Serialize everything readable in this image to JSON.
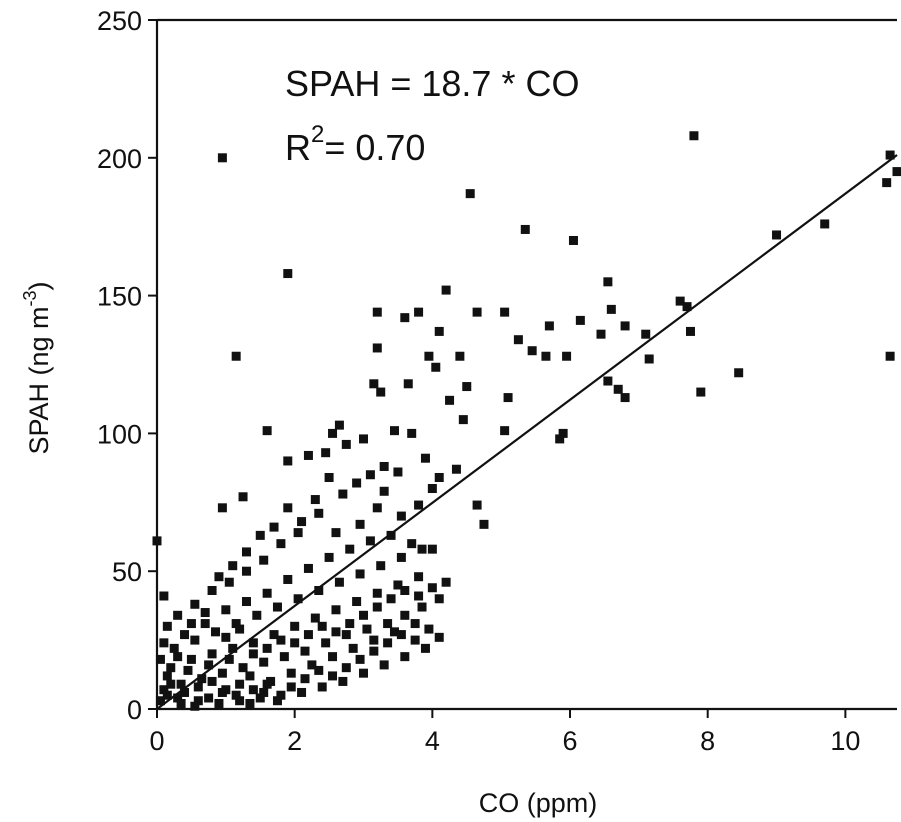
{
  "chart_data": {
    "type": "scatter",
    "xlabel": "CO (ppm)",
    "ylabel_main": "SPAH (ng m",
    "ylabel_sup": "-3",
    "ylabel_close": ")",
    "xlim": [
      0,
      10.75
    ],
    "ylim": [
      0,
      250
    ],
    "xticks": [
      0,
      2,
      4,
      6,
      8,
      10
    ],
    "yticks": [
      0,
      50,
      100,
      150,
      200,
      250
    ],
    "grid": false,
    "annotations": {
      "equation": "SPAH = 18.7 * CO",
      "r2_prefix": "R",
      "r2_sup": "2",
      "r2_value": "= 0.70"
    },
    "fit_line": {
      "slope": 18.7,
      "intercept": 0,
      "x_range": [
        0,
        10.75
      ]
    },
    "marker_color": "#111111",
    "points": [
      [
        0.95,
        200
      ],
      [
        7.8,
        208
      ],
      [
        4.55,
        187
      ],
      [
        10.65,
        201
      ],
      [
        10.75,
        195
      ],
      [
        10.6,
        191
      ],
      [
        1.9,
        158
      ],
      [
        5.35,
        174
      ],
      [
        6.05,
        170
      ],
      [
        9.0,
        172
      ],
      [
        9.7,
        176
      ],
      [
        10.65,
        128
      ],
      [
        4.2,
        152
      ],
      [
        6.55,
        155
      ],
      [
        7.6,
        148
      ],
      [
        7.7,
        146
      ],
      [
        6.6,
        145
      ],
      [
        6.15,
        141
      ],
      [
        5.7,
        139
      ],
      [
        5.05,
        144
      ],
      [
        4.65,
        144
      ],
      [
        3.2,
        144
      ],
      [
        3.8,
        144
      ],
      [
        3.6,
        142
      ],
      [
        4.1,
        137
      ],
      [
        5.25,
        134
      ],
      [
        5.45,
        130
      ],
      [
        6.45,
        136
      ],
      [
        6.8,
        139
      ],
      [
        7.1,
        136
      ],
      [
        7.75,
        137
      ],
      [
        5.95,
        128
      ],
      [
        5.65,
        128
      ],
      [
        6.55,
        119
      ],
      [
        6.7,
        116
      ],
      [
        6.8,
        113
      ],
      [
        7.15,
        127
      ],
      [
        7.9,
        115
      ],
      [
        8.45,
        122
      ],
      [
        5.9,
        100
      ],
      [
        5.85,
        98
      ],
      [
        5.1,
        113
      ],
      [
        5.05,
        101
      ],
      [
        4.4,
        128
      ],
      [
        4.05,
        124
      ],
      [
        3.95,
        128
      ],
      [
        3.2,
        131
      ],
      [
        3.15,
        118
      ],
      [
        3.25,
        115
      ],
      [
        3.65,
        118
      ],
      [
        4.25,
        112
      ],
      [
        4.5,
        117
      ],
      [
        4.45,
        105
      ],
      [
        4.35,
        87
      ],
      [
        4.65,
        74
      ],
      [
        4.75,
        67
      ],
      [
        1.15,
        128
      ],
      [
        1.6,
        101
      ],
      [
        2.65,
        103
      ],
      [
        2.55,
        100
      ],
      [
        0,
        61
      ],
      [
        0.1,
        41
      ],
      [
        0.95,
        73
      ],
      [
        1.25,
        77
      ],
      [
        1.9,
        90
      ],
      [
        2.2,
        92
      ],
      [
        2.45,
        93
      ],
      [
        2.75,
        96
      ],
      [
        3.0,
        98
      ],
      [
        3.45,
        101
      ],
      [
        3.7,
        100
      ],
      [
        3.9,
        91
      ],
      [
        4.1,
        84
      ],
      [
        4.0,
        80
      ],
      [
        3.8,
        74
      ],
      [
        3.55,
        70
      ],
      [
        3.2,
        73
      ],
      [
        2.95,
        67
      ],
      [
        2.6,
        64
      ],
      [
        2.35,
        71
      ],
      [
        2.05,
        64
      ],
      [
        1.8,
        60
      ],
      [
        1.55,
        54
      ],
      [
        1.3,
        50
      ],
      [
        1.05,
        46
      ],
      [
        0.8,
        43
      ],
      [
        0.55,
        38
      ],
      [
        0.3,
        34
      ],
      [
        0.15,
        30
      ],
      [
        0.4,
        27
      ],
      [
        0.7,
        31
      ],
      [
        1.0,
        36
      ],
      [
        1.3,
        39
      ],
      [
        1.6,
        42
      ],
      [
        1.9,
        47
      ],
      [
        2.2,
        51
      ],
      [
        2.5,
        55
      ],
      [
        2.8,
        58
      ],
      [
        3.1,
        61
      ],
      [
        3.4,
        63
      ],
      [
        3.7,
        60
      ],
      [
        4.0,
        58
      ],
      [
        4.2,
        46
      ],
      [
        4.1,
        40
      ],
      [
        3.85,
        37
      ],
      [
        3.6,
        34
      ],
      [
        3.35,
        31
      ],
      [
        3.05,
        29
      ],
      [
        2.75,
        27
      ],
      [
        2.45,
        24
      ],
      [
        2.15,
        21
      ],
      [
        1.85,
        19
      ],
      [
        1.55,
        17
      ],
      [
        1.25,
        15
      ],
      [
        0.95,
        13
      ],
      [
        0.65,
        11
      ],
      [
        0.35,
        9
      ],
      [
        0.1,
        7
      ],
      [
        0.2,
        15
      ],
      [
        0.5,
        18
      ],
      [
        0.8,
        20
      ],
      [
        1.1,
        22
      ],
      [
        1.4,
        24
      ],
      [
        1.7,
        27
      ],
      [
        2.0,
        30
      ],
      [
        2.3,
        33
      ],
      [
        2.6,
        36
      ],
      [
        2.9,
        39
      ],
      [
        3.2,
        42
      ],
      [
        3.5,
        45
      ],
      [
        3.8,
        48
      ],
      [
        4.1,
        26
      ],
      [
        3.9,
        22
      ],
      [
        3.6,
        19
      ],
      [
        3.3,
        16
      ],
      [
        3.0,
        13
      ],
      [
        2.7,
        10
      ],
      [
        2.4,
        8
      ],
      [
        2.1,
        6
      ],
      [
        1.8,
        5
      ],
      [
        1.5,
        4
      ],
      [
        1.2,
        3
      ],
      [
        0.9,
        2
      ],
      [
        0.6,
        3
      ],
      [
        0.3,
        4
      ],
      [
        0.05,
        3
      ],
      [
        0.15,
        12
      ],
      [
        0.45,
        14
      ],
      [
        0.75,
        16
      ],
      [
        1.05,
        18
      ],
      [
        1.35,
        12
      ],
      [
        1.65,
        10
      ],
      [
        1.95,
        13
      ],
      [
        2.25,
        16
      ],
      [
        2.55,
        19
      ],
      [
        2.85,
        22
      ],
      [
        3.15,
        25
      ],
      [
        3.45,
        28
      ],
      [
        3.75,
        31
      ],
      [
        0.25,
        22
      ],
      [
        0.55,
        25
      ],
      [
        0.85,
        28
      ],
      [
        1.15,
        31
      ],
      [
        1.45,
        34
      ],
      [
        1.75,
        37
      ],
      [
        2.05,
        40
      ],
      [
        2.35,
        43
      ],
      [
        2.65,
        46
      ],
      [
        2.95,
        49
      ],
      [
        3.25,
        52
      ],
      [
        3.55,
        55
      ],
      [
        3.85,
        58
      ],
      [
        0.05,
        18
      ],
      [
        0.1,
        24
      ],
      [
        0.2,
        9
      ],
      [
        0.4,
        6
      ],
      [
        0.6,
        8
      ],
      [
        0.8,
        10
      ],
      [
        1.0,
        7
      ],
      [
        1.2,
        9
      ],
      [
        1.4,
        7
      ],
      [
        1.6,
        9
      ],
      [
        1.0,
        26
      ],
      [
        1.2,
        29
      ],
      [
        1.4,
        20
      ],
      [
        1.6,
        22
      ],
      [
        1.8,
        25
      ],
      [
        2.0,
        24
      ],
      [
        2.2,
        27
      ],
      [
        2.4,
        30
      ],
      [
        2.6,
        28
      ],
      [
        2.8,
        31
      ],
      [
        3.0,
        34
      ],
      [
        3.2,
        37
      ],
      [
        3.4,
        40
      ],
      [
        3.6,
        43
      ],
      [
        3.8,
        41
      ],
      [
        4.0,
        44
      ],
      [
        2.7,
        78
      ],
      [
        2.9,
        82
      ],
      [
        3.1,
        85
      ],
      [
        3.3,
        88
      ],
      [
        3.5,
        86
      ],
      [
        3.3,
        79
      ],
      [
        2.5,
        84
      ],
      [
        2.3,
        76
      ],
      [
        2.1,
        68
      ],
      [
        1.9,
        73
      ],
      [
        1.7,
        66
      ],
      [
        1.5,
        63
      ],
      [
        1.3,
        57
      ],
      [
        1.1,
        52
      ],
      [
        0.9,
        48
      ],
      [
        0.7,
        35
      ],
      [
        0.5,
        31
      ],
      [
        0.3,
        19
      ],
      [
        0.15,
        5
      ],
      [
        0.35,
        2
      ],
      [
        0.55,
        1
      ],
      [
        0.75,
        4
      ],
      [
        0.95,
        6
      ],
      [
        1.15,
        5
      ],
      [
        1.35,
        2
      ],
      [
        1.55,
        6
      ],
      [
        1.75,
        3
      ],
      [
        1.95,
        8
      ],
      [
        2.15,
        11
      ],
      [
        2.35,
        14
      ],
      [
        2.55,
        12
      ],
      [
        2.75,
        15
      ],
      [
        2.95,
        18
      ],
      [
        3.15,
        21
      ],
      [
        3.35,
        24
      ],
      [
        3.55,
        27
      ],
      [
        3.75,
        25
      ],
      [
        3.95,
        29
      ]
    ]
  }
}
